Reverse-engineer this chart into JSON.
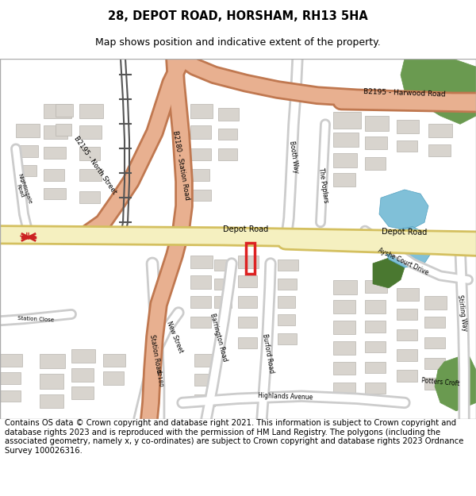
{
  "title_line1": "28, DEPOT ROAD, HORSHAM, RH13 5HA",
  "title_line2": "Map shows position and indicative extent of the property.",
  "footer": "Contains OS data © Crown copyright and database right 2021. This information is subject to Crown copyright and database rights 2023 and is reproduced with the permission of HM Land Registry. The polygons (including the associated geometry, namely x, y co-ordinates) are subject to Crown copyright and database rights 2023 Ordnance Survey 100026316.",
  "map_bg": "#f2eeea",
  "road_depot_fill": "#f5f0c0",
  "road_depot_outline": "#d4c060",
  "road_b_fill": "#e8b090",
  "road_b_outline": "#c07850",
  "road_minor_fill": "#ffffff",
  "road_minor_outline": "#cccccc",
  "building_fill": "#d8d4ce",
  "building_outline": "#b8b4ae",
  "green_fill": "#6a9a50",
  "green2_fill": "#4a7830",
  "water_fill": "#80c0d8",
  "water_outline": "#50a0c0",
  "railway_color": "#888888",
  "highlight_color": "#dd2222",
  "title_fontsize": 10.5,
  "subtitle_fontsize": 9,
  "footer_fontsize": 7.2
}
